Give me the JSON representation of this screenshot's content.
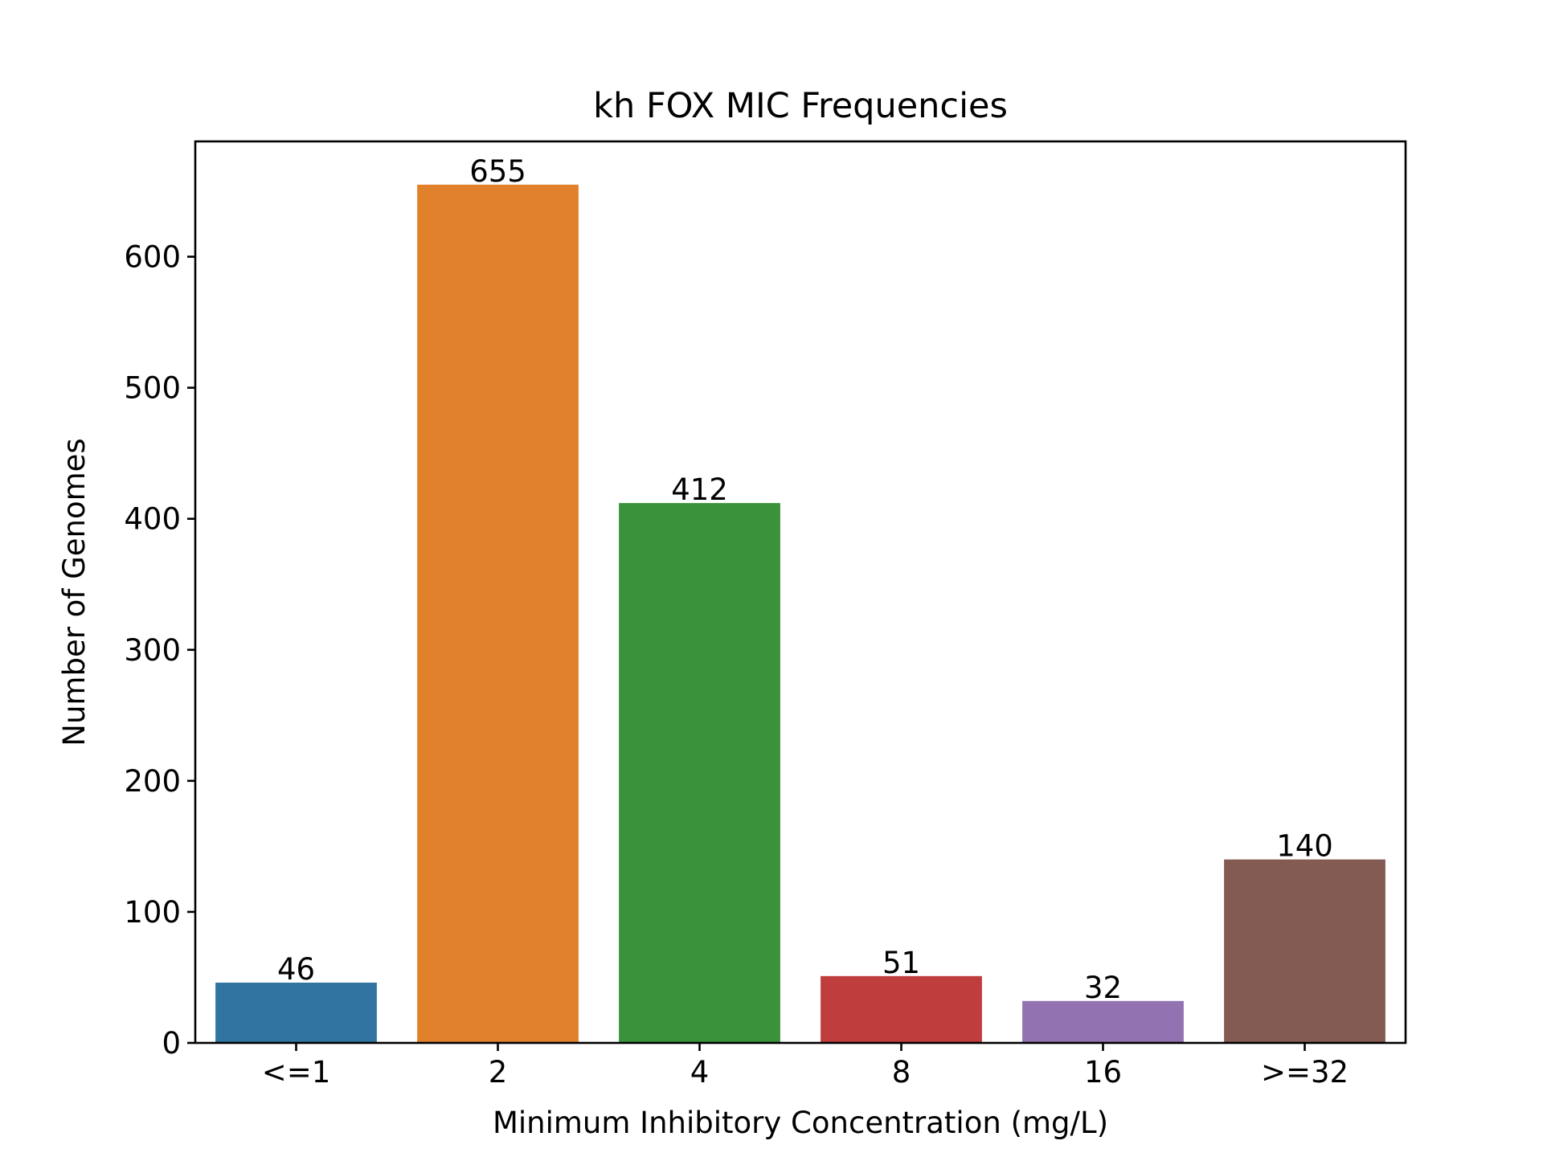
{
  "chart_data": {
    "type": "bar",
    "title": "kh FOX MIC Frequencies",
    "xlabel": "Minimum Inhibitory Concentration (mg/L)",
    "ylabel": "Number of Genomes",
    "categories": [
      "<=1",
      "2",
      "4",
      "8",
      "16",
      ">=32"
    ],
    "values": [
      46,
      655,
      412,
      51,
      32,
      140
    ],
    "data_labels": [
      "46",
      "655",
      "412",
      "51",
      "32",
      "140"
    ],
    "colors": [
      "#3274a1",
      "#e1812c",
      "#3a923a",
      "#c03d3e",
      "#9372b2",
      "#845b53"
    ],
    "ylim": [
      0,
      688
    ],
    "yticks": [
      0,
      100,
      200,
      300,
      400,
      500,
      600
    ],
    "ytick_labels": [
      "0",
      "100",
      "200",
      "300",
      "400",
      "500",
      "600"
    ],
    "grid": false,
    "legend": "none"
  }
}
